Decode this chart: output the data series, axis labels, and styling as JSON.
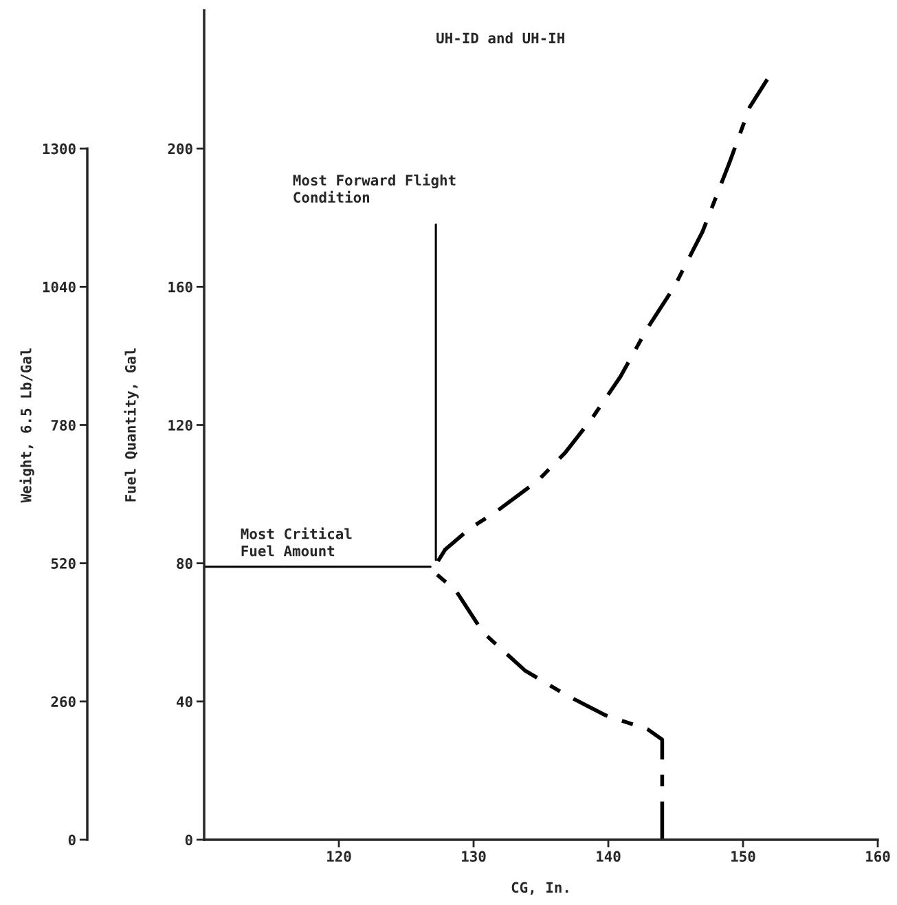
{
  "chart_data": {
    "type": "line",
    "title": "UH-ID and UH-IH",
    "xlabel": "CG, In.",
    "ylabel": "Fuel Quantity, Gal",
    "y2label": "Weight, 6.5 Lb/Gal",
    "xlim": [
      110,
      160
    ],
    "xticks": [
      120,
      130,
      140,
      150,
      160
    ],
    "ylim": [
      0,
      240
    ],
    "yticks": [
      0,
      40,
      80,
      120,
      160,
      200
    ],
    "y2lim": [
      0,
      1560
    ],
    "y2ticks": [
      0,
      260,
      520,
      780,
      1040,
      1300
    ],
    "grid": false,
    "marker": "none",
    "series": [
      {
        "color": "#000000",
        "line_style": "dashdot",
        "x": [
          144,
          144,
          142.9,
          139.8,
          136.8,
          133.8,
          130.7,
          128.7,
          127.2,
          127.1,
          127.9,
          129.7,
          131.7,
          134.8,
          136.8,
          138.8,
          140.9,
          142.9,
          144.9,
          147.0,
          149.0,
          150.5,
          151.8
        ],
        "values": [
          0,
          29,
          32,
          36,
          42,
          49,
          60,
          72,
          77,
          79,
          84,
          90,
          95,
          104,
          112,
          122,
          134,
          148,
          160,
          176,
          196,
          212,
          220
        ]
      },
      {
        "color": "#000000",
        "line_style": "solid",
        "x": [
          127.2,
          127.2
        ],
        "values": [
          81,
          178
        ]
      },
      {
        "color": "#000000",
        "line_style": "solid",
        "x": [
          110,
          126.8
        ],
        "values": [
          79,
          79
        ]
      }
    ],
    "annotations": [
      {
        "text": "Most Forward Flight\nCondition",
        "x": 127.2,
        "y": 178
      },
      {
        "text": "Most Critical\nFuel Amount",
        "x": 110,
        "y": 79
      }
    ]
  }
}
